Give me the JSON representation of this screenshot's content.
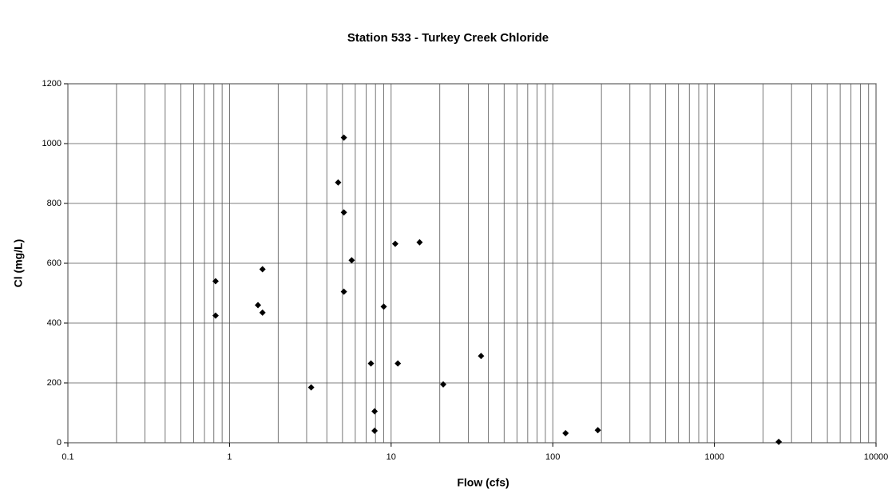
{
  "chart_data": {
    "type": "scatter",
    "title": "Station 533 - Turkey Creek Chloride",
    "xlabel": "Flow (cfs)",
    "ylabel": "Cl (mg/L)",
    "x": [
      0.82,
      0.82,
      1.5,
      1.6,
      1.6,
      3.2,
      4.7,
      5.1,
      5.1,
      5.7,
      5.1,
      7.5,
      7.9,
      7.9,
      9.0,
      10.6,
      11,
      15,
      21,
      36,
      120,
      190,
      2500
    ],
    "values": [
      540,
      425,
      460,
      435,
      580,
      185,
      870,
      1020,
      770,
      610,
      505,
      265,
      105,
      40,
      455,
      665,
      265,
      670,
      195,
      290,
      32,
      42,
      3
    ],
    "color": "#000000",
    "xlog": true,
    "xlim": [
      0.1,
      10000
    ],
    "xticks": [
      0.1,
      1,
      10,
      100,
      1000,
      10000
    ],
    "ylim": [
      0,
      1200
    ],
    "yticks": [
      0,
      200,
      400,
      600,
      800,
      1000,
      1200
    ],
    "grid": true,
    "minor_grid": true
  }
}
